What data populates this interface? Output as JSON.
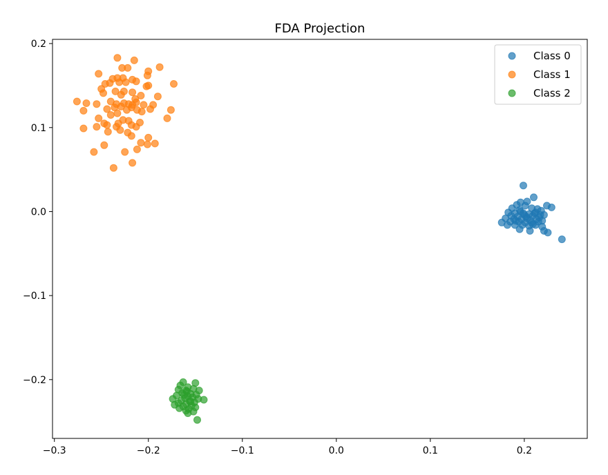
{
  "chart_data": {
    "type": "scatter",
    "title": "FDA Projection",
    "xlabel": "",
    "ylabel": "",
    "xlim": [
      -0.302,
      0.267
    ],
    "ylim": [
      -0.27,
      0.205
    ],
    "xticks": [
      -0.3,
      -0.2,
      -0.1,
      0.0,
      0.1,
      0.2
    ],
    "xtick_labels": [
      "−0.3",
      "−0.2",
      "−0.1",
      "0.0",
      "0.1",
      "0.2"
    ],
    "yticks": [
      -0.2,
      -0.1,
      0.0,
      0.1,
      0.2
    ],
    "ytick_labels": [
      "−0.2",
      "−0.1",
      "0.0",
      "0.1",
      "0.2"
    ],
    "grid": false,
    "legend_position": "top-right",
    "marker_alpha": 0.7,
    "series": [
      {
        "name": "Class 0",
        "color": "#1f77b4",
        "points": [
          [
            0.199,
            0.031
          ],
          [
            0.21,
            0.017
          ],
          [
            0.203,
            0.012
          ],
          [
            0.196,
            0.011
          ],
          [
            0.192,
            0.008
          ],
          [
            0.201,
            0.007
          ],
          [
            0.224,
            0.007
          ],
          [
            0.229,
            0.005
          ],
          [
            0.187,
            0.004
          ],
          [
            0.208,
            0.004
          ],
          [
            0.214,
            0.003
          ],
          [
            0.195,
            0.002
          ],
          [
            0.218,
            0.001
          ],
          [
            0.183,
            -0.001
          ],
          [
            0.19,
            -0.002
          ],
          [
            0.199,
            -0.002
          ],
          [
            0.205,
            -0.003
          ],
          [
            0.211,
            -0.002
          ],
          [
            0.221,
            -0.004
          ],
          [
            0.186,
            -0.005
          ],
          [
            0.193,
            -0.006
          ],
          [
            0.202,
            -0.006
          ],
          [
            0.209,
            -0.005
          ],
          [
            0.216,
            -0.007
          ],
          [
            0.18,
            -0.008
          ],
          [
            0.189,
            -0.009
          ],
          [
            0.197,
            -0.009
          ],
          [
            0.206,
            -0.01
          ],
          [
            0.213,
            -0.009
          ],
          [
            0.219,
            -0.011
          ],
          [
            0.185,
            -0.012
          ],
          [
            0.194,
            -0.012
          ],
          [
            0.201,
            -0.013
          ],
          [
            0.208,
            -0.013
          ],
          [
            0.215,
            -0.012
          ],
          [
            0.176,
            -0.013
          ],
          [
            0.182,
            -0.016
          ],
          [
            0.19,
            -0.016
          ],
          [
            0.198,
            -0.016
          ],
          [
            0.205,
            -0.017
          ],
          [
            0.212,
            -0.016
          ],
          [
            0.219,
            -0.018
          ],
          [
            0.195,
            -0.021
          ],
          [
            0.206,
            -0.023
          ],
          [
            0.221,
            -0.023
          ],
          [
            0.225,
            -0.025
          ],
          [
            0.24,
            -0.033
          ],
          [
            0.2,
            -0.004
          ],
          [
            0.196,
            0.0
          ],
          [
            0.212,
            -0.001
          ],
          [
            0.203,
            -0.008
          ],
          [
            0.191,
            -0.011
          ],
          [
            0.209,
            -0.015
          ],
          [
            0.217,
            -0.004
          ]
        ]
      },
      {
        "name": "Class 1",
        "color": "#ff7f0e",
        "points": [
          [
            -0.233,
            0.183
          ],
          [
            -0.215,
            0.18
          ],
          [
            -0.228,
            0.171
          ],
          [
            -0.222,
            0.171
          ],
          [
            -0.188,
            0.172
          ],
          [
            -0.2,
            0.167
          ],
          [
            -0.253,
            0.164
          ],
          [
            -0.201,
            0.162
          ],
          [
            -0.227,
            0.159
          ],
          [
            -0.238,
            0.158
          ],
          [
            -0.233,
            0.159
          ],
          [
            -0.217,
            0.157
          ],
          [
            -0.246,
            0.152
          ],
          [
            -0.241,
            0.153
          ],
          [
            -0.231,
            0.154
          ],
          [
            -0.224,
            0.154
          ],
          [
            -0.213,
            0.155
          ],
          [
            -0.2,
            0.15
          ],
          [
            -0.202,
            0.149
          ],
          [
            -0.173,
            0.152
          ],
          [
            -0.25,
            0.146
          ],
          [
            -0.235,
            0.143
          ],
          [
            -0.226,
            0.143
          ],
          [
            -0.217,
            0.142
          ],
          [
            -0.248,
            0.141
          ],
          [
            -0.229,
            0.139
          ],
          [
            -0.208,
            0.138
          ],
          [
            -0.214,
            0.134
          ],
          [
            -0.19,
            0.137
          ],
          [
            -0.276,
            0.131
          ],
          [
            -0.266,
            0.129
          ],
          [
            -0.24,
            0.131
          ],
          [
            -0.234,
            0.128
          ],
          [
            -0.226,
            0.129
          ],
          [
            -0.221,
            0.128
          ],
          [
            -0.217,
            0.127
          ],
          [
            -0.213,
            0.13
          ],
          [
            -0.205,
            0.127
          ],
          [
            -0.195,
            0.127
          ],
          [
            -0.255,
            0.128
          ],
          [
            -0.244,
            0.122
          ],
          [
            -0.236,
            0.124
          ],
          [
            -0.229,
            0.125
          ],
          [
            -0.223,
            0.121
          ],
          [
            -0.218,
            0.124
          ],
          [
            -0.212,
            0.121
          ],
          [
            -0.207,
            0.119
          ],
          [
            -0.198,
            0.122
          ],
          [
            -0.269,
            0.12
          ],
          [
            -0.176,
            0.121
          ],
          [
            -0.233,
            0.117
          ],
          [
            -0.24,
            0.115
          ],
          [
            -0.253,
            0.111
          ],
          [
            -0.18,
            0.111
          ],
          [
            -0.227,
            0.109
          ],
          [
            -0.221,
            0.108
          ],
          [
            -0.232,
            0.105
          ],
          [
            -0.209,
            0.106
          ],
          [
            -0.247,
            0.105
          ],
          [
            -0.244,
            0.103
          ],
          [
            -0.218,
            0.103
          ],
          [
            -0.234,
            0.101
          ],
          [
            -0.213,
            0.101
          ],
          [
            -0.255,
            0.101
          ],
          [
            -0.269,
            0.099
          ],
          [
            -0.23,
            0.097
          ],
          [
            -0.243,
            0.095
          ],
          [
            -0.222,
            0.094
          ],
          [
            -0.2,
            0.088
          ],
          [
            -0.218,
            0.09
          ],
          [
            -0.208,
            0.082
          ],
          [
            -0.201,
            0.08
          ],
          [
            -0.193,
            0.081
          ],
          [
            -0.247,
            0.079
          ],
          [
            -0.212,
            0.074
          ],
          [
            -0.225,
            0.071
          ],
          [
            -0.258,
            0.071
          ],
          [
            -0.217,
            0.058
          ],
          [
            -0.237,
            0.052
          ]
        ]
      },
      {
        "name": "Class 2",
        "color": "#2ca02c",
        "points": [
          [
            -0.163,
            -0.203
          ],
          [
            -0.15,
            -0.204
          ],
          [
            -0.166,
            -0.207
          ],
          [
            -0.158,
            -0.209
          ],
          [
            -0.152,
            -0.211
          ],
          [
            -0.168,
            -0.212
          ],
          [
            -0.16,
            -0.213
          ],
          [
            -0.146,
            -0.213
          ],
          [
            -0.164,
            -0.216
          ],
          [
            -0.155,
            -0.217
          ],
          [
            -0.149,
            -0.218
          ],
          [
            -0.17,
            -0.219
          ],
          [
            -0.158,
            -0.22
          ],
          [
            -0.153,
            -0.221
          ],
          [
            -0.161,
            -0.222
          ],
          [
            -0.174,
            -0.223
          ],
          [
            -0.147,
            -0.223
          ],
          [
            -0.141,
            -0.224
          ],
          [
            -0.165,
            -0.225
          ],
          [
            -0.156,
            -0.226
          ],
          [
            -0.151,
            -0.227
          ],
          [
            -0.168,
            -0.228
          ],
          [
            -0.16,
            -0.229
          ],
          [
            -0.172,
            -0.23
          ],
          [
            -0.154,
            -0.231
          ],
          [
            -0.163,
            -0.232
          ],
          [
            -0.15,
            -0.233
          ],
          [
            -0.167,
            -0.234
          ],
          [
            -0.157,
            -0.235
          ],
          [
            -0.16,
            -0.237
          ],
          [
            -0.152,
            -0.238
          ],
          [
            -0.158,
            -0.24
          ],
          [
            -0.148,
            -0.248
          ],
          [
            -0.162,
            -0.218
          ],
          [
            -0.155,
            -0.226
          ],
          [
            -0.159,
            -0.214
          ]
        ]
      }
    ]
  }
}
